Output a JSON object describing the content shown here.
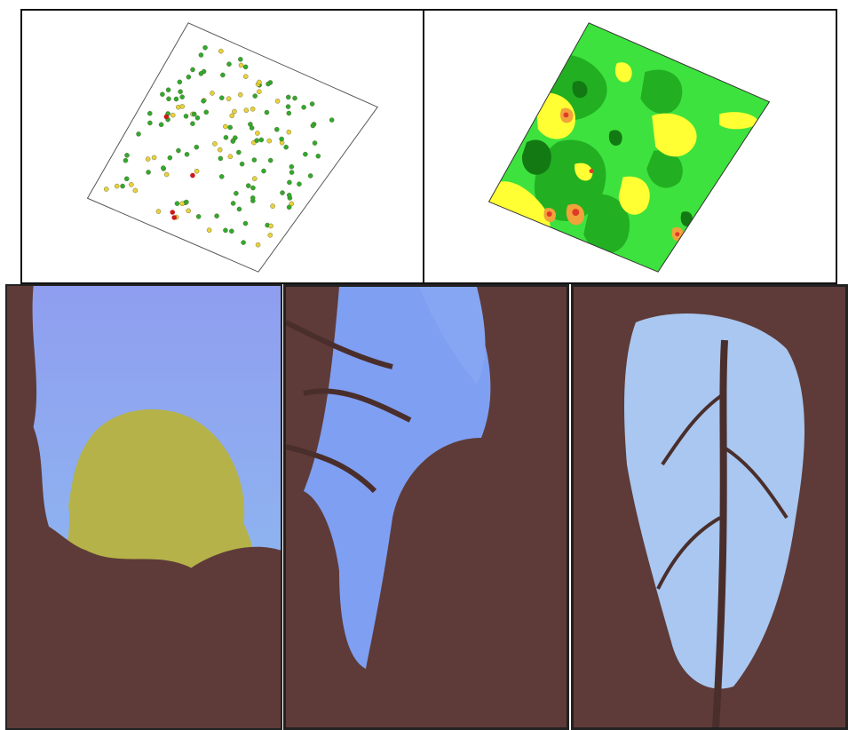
{
  "figure": {
    "panels": [
      {
        "id": "map-points",
        "kind": "tree point map"
      },
      {
        "id": "map-contour",
        "kind": "interpolated contour map"
      },
      {
        "id": "photo-1",
        "kind": "canopy photo"
      },
      {
        "id": "photo-2",
        "kind": "canopy photo"
      },
      {
        "id": "photo-3",
        "kind": "canopy photo"
      }
    ]
  },
  "colors": {
    "point_green": "#2faa2f",
    "point_yellow": "#e8d23a",
    "point_red": "#cc1a1a",
    "contour_light_green": "#3ee23e",
    "contour_mid_green": "#22b022",
    "contour_dark_green": "#137a13",
    "contour_yellow": "#ffff33",
    "contour_orange": "#f2a23a",
    "contour_red": "#e03a2a",
    "sky_blue": "#7f9ff2",
    "canopy_shadow": "#5e3b38",
    "foliage_yellow": "#b5b24a"
  },
  "icons": {
    "tree_symbol": "circle-point-icon"
  }
}
